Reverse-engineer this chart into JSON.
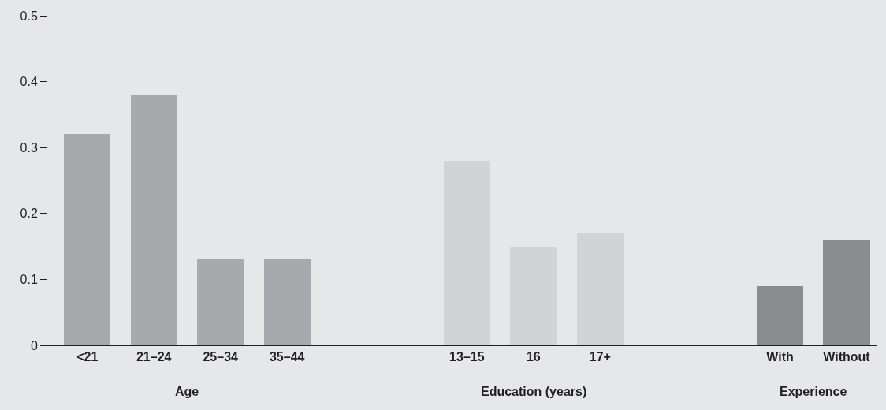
{
  "chart_data": {
    "type": "bar",
    "categories": [
      "<21",
      "21–24",
      "25–34",
      "35–44",
      "13–15",
      "16",
      "17+",
      "With",
      "Without"
    ],
    "values": [
      0.32,
      0.38,
      0.13,
      0.13,
      0.28,
      0.15,
      0.17,
      0.09,
      0.16
    ],
    "colors": [
      "#a7a9ac",
      "#a7a9ac",
      "#a7a9ac",
      "#a7a9ac",
      "#d1d3d4",
      "#d1d3d4",
      "#d1d3d4",
      "#8a8c8e",
      "#8a8c8e"
    ],
    "annotations": [
      "Age",
      "Education (years)",
      "Experience"
    ],
    "ylim": [
      0,
      0.5
    ],
    "yticks": [
      0,
      0.1,
      0.2,
      0.3,
      0.4,
      0.5
    ],
    "grid": false
  }
}
